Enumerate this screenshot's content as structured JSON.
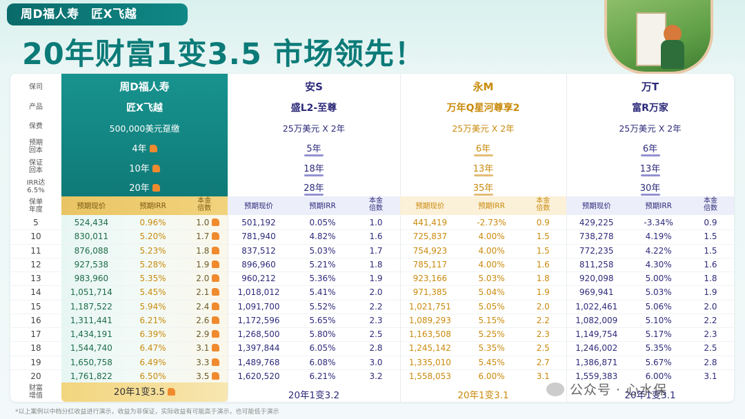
{
  "header": {
    "brand": "周D福人寿　匠X飞越",
    "headline": "20年财富1变3.5 市场领先！"
  },
  "row_labels": {
    "company": "保司",
    "product": "产品",
    "premium": "保费",
    "payback": [
      "预期",
      "回本"
    ],
    "guarantee": [
      "保证",
      "回本"
    ],
    "irr": [
      "IRR达",
      "6.5%"
    ],
    "year": [
      "保单",
      "年度"
    ],
    "growth": [
      "财富",
      "增值"
    ]
  },
  "sub_headers": {
    "cv": "预期现价",
    "irr": "预期IRR",
    "mult": [
      "本金",
      "倍数"
    ]
  },
  "colors": {
    "teal": "#0f7a77",
    "gold": "#e9c463",
    "navy": "#2d2a7a",
    "amber": "#c98a0c",
    "green": "#1d6b48"
  },
  "years": [
    "5",
    "10",
    "11",
    "12",
    "13",
    "14",
    "15",
    "16",
    "17",
    "18",
    "19",
    "20"
  ],
  "companies": [
    {
      "name": "周D福人寿",
      "product": "匠X飞越",
      "premium": "500,000美元趸缴",
      "payback": "4年",
      "guarantee": "10年",
      "irr": "20年",
      "summary": "20年1变3.5",
      "cv": [
        "524,434",
        "830,011",
        "876,088",
        "927,538",
        "983,960",
        "1,051,714",
        "1,187,522",
        "1,311,441",
        "1,434,191",
        "1,544,740",
        "1,650,758",
        "1,761,822"
      ],
      "irr_vals": [
        "0.96%",
        "5.20%",
        "5.23%",
        "5.28%",
        "5.35%",
        "5.45%",
        "5.94%",
        "6.21%",
        "6.39%",
        "6.47%",
        "6.49%",
        "6.50%"
      ],
      "mult": [
        "1.0",
        "1.7",
        "1.8",
        "1.9",
        "2.0",
        "2.1",
        "2.4",
        "2.6",
        "2.9",
        "3.1",
        "3.3",
        "3.5"
      ]
    },
    {
      "name": "安S",
      "product": "盛L2-至尊",
      "premium": "25万美元 X 2年",
      "payback": "5年",
      "guarantee": "18年",
      "irr": "28年",
      "summary": "20年1变3.2",
      "cv": [
        "501,192",
        "781,940",
        "837,512",
        "896,960",
        "960,212",
        "1,018,012",
        "1,091,700",
        "1,172,596",
        "1,268,500",
        "1,397,844",
        "1,489,768",
        "1,620,520"
      ],
      "irr_vals": [
        "0.05%",
        "4.82%",
        "5.03%",
        "5.21%",
        "5.36%",
        "5.41%",
        "5.52%",
        "5.65%",
        "5.80%",
        "6.05%",
        "6.08%",
        "6.21%"
      ],
      "mult": [
        "1.0",
        "1.6",
        "1.7",
        "1.8",
        "1.9",
        "2.0",
        "2.2",
        "2.3",
        "2.5",
        "2.8",
        "3.0",
        "3.2"
      ]
    },
    {
      "name": "永M",
      "product": "万年Q星河尊享2",
      "premium": "25万美元 X 2年",
      "payback": "6年",
      "guarantee": "13年",
      "irr": "35年",
      "summary": "20年1变3.1",
      "cv": [
        "441,419",
        "725,837",
        "754,923",
        "785,117",
        "923,166",
        "971,385",
        "1,021,751",
        "1,089,293",
        "1,163,508",
        "1,245,142",
        "1,335,010",
        "1,558,053"
      ],
      "irr_vals": [
        "-2.73%",
        "4.00%",
        "4.00%",
        "4.00%",
        "5.03%",
        "5.04%",
        "5.05%",
        "5.15%",
        "5.25%",
        "5.35%",
        "5.45%",
        "6.00%"
      ],
      "mult": [
        "0.9",
        "1.5",
        "1.5",
        "1.6",
        "1.8",
        "1.9",
        "2.0",
        "2.2",
        "2.3",
        "2.5",
        "2.7",
        "3.1"
      ]
    },
    {
      "name": "万T",
      "product": "富R万家",
      "premium": "25万美元 X 2年",
      "payback": "6年",
      "guarantee": "13年",
      "irr": "30年",
      "summary": "20年1变3.1",
      "cv": [
        "429,225",
        "738,278",
        "772,235",
        "811,258",
        "920,098",
        "969,941",
        "1,022,461",
        "1,082,009",
        "1,149,754",
        "1,246,002",
        "1,386,871",
        "1,559,383"
      ],
      "irr_vals": [
        "-3.34%",
        "4.19%",
        "4.22%",
        "4.30%",
        "5.00%",
        "5.03%",
        "5.06%",
        "5.10%",
        "5.17%",
        "5.35%",
        "5.67%",
        "6.00%"
      ],
      "mult": [
        "0.9",
        "1.5",
        "1.5",
        "1.6",
        "1.8",
        "1.9",
        "2.0",
        "2.2",
        "2.3",
        "2.5",
        "2.8",
        "3.1"
      ]
    }
  ],
  "footnote": "*以上案例以中档分红收益进行演示，收益为非保证，实际收益有可能高于演示，也可能低于演示",
  "watermark": "公众号 · 心水保"
}
